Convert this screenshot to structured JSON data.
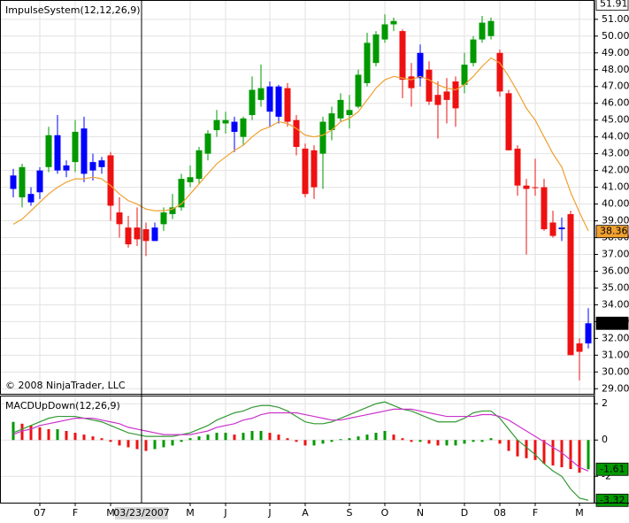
{
  "chart_data": [
    {
      "type": "candlestick",
      "title": "ImpulseSystem(12,12,26,9)",
      "annotation": "© 2008 NinjaTrader, LLC",
      "open": [
        40.9,
        40.4,
        40.6,
        40.7,
        42.2,
        42.0,
        42.0,
        42.5,
        44.5,
        42.5,
        42.6,
        42.9,
        39.5,
        38.6,
        38.6,
        38.5,
        37.8,
        38.8,
        39.4,
        39.8,
        41.3,
        41.5,
        43.0,
        44.4,
        44.8,
        44.9,
        44.0,
        45.3,
        46.2,
        47.0,
        45.2,
        46.9,
        45.0,
        43.3,
        43.2,
        43.0,
        44.4,
        45.1,
        45.3,
        45.8,
        47.2,
        48.4,
        49.8,
        50.7,
        50.3,
        47.6,
        47.5,
        48.0,
        46.5,
        46.7,
        47.3,
        47.1,
        48.4,
        49.8,
        50.0,
        49.0,
        46.6,
        43.3,
        41.1,
        41.0,
        41.0,
        38.9,
        38.6,
        39.4,
        31.7,
        31.7
      ],
      "high": [
        42.1,
        42.4,
        41.0,
        42.2,
        44.6,
        45.3,
        42.6,
        45.0,
        45.2,
        43.0,
        42.8,
        43.1,
        40.4,
        39.3,
        39.8,
        38.9,
        38.9,
        39.8,
        40.6,
        41.8,
        42.3,
        43.4,
        44.4,
        45.6,
        45.5,
        45.2,
        45.2,
        47.6,
        48.3,
        47.3,
        47.1,
        47.2,
        45.3,
        43.6,
        43.5,
        45.2,
        45.8,
        46.6,
        46.5,
        48.0,
        50.2,
        50.3,
        51.3,
        51.1,
        50.4,
        48.4,
        49.5,
        48.5,
        47.3,
        47.5,
        47.6,
        49.0,
        50.0,
        51.2,
        51.1,
        49.2,
        46.8,
        43.5,
        41.5,
        42.7,
        41.5,
        39.6,
        39.2,
        39.6,
        32.0,
        33.8
      ],
      "low": [
        40.4,
        39.8,
        39.9,
        40.3,
        41.9,
        41.8,
        41.6,
        41.9,
        41.3,
        41.4,
        41.8,
        39.0,
        38.0,
        37.4,
        37.5,
        36.9,
        37.8,
        38.4,
        39.1,
        39.6,
        41.0,
        41.2,
        42.6,
        44.0,
        44.2,
        43.1,
        43.5,
        45.0,
        45.8,
        44.6,
        44.8,
        44.6,
        42.9,
        40.4,
        40.3,
        40.9,
        43.8,
        44.9,
        44.5,
        45.7,
        47.0,
        48.2,
        49.6,
        50.3,
        46.3,
        45.8,
        47.0,
        45.9,
        43.9,
        44.8,
        44.6,
        46.6,
        48.2,
        49.6,
        49.8,
        46.4,
        43.2,
        40.5,
        37.0,
        40.5,
        38.4,
        38.0,
        37.8,
        31.0,
        29.5,
        31.4
      ],
      "close": [
        41.7,
        42.2,
        40.1,
        42.0,
        44.1,
        44.1,
        42.3,
        44.3,
        41.8,
        42.0,
        42.2,
        39.9,
        38.8,
        37.6,
        37.9,
        37.8,
        38.6,
        39.5,
        39.8,
        41.5,
        41.6,
        43.2,
        44.2,
        45.0,
        45.0,
        44.3,
        45.1,
        46.8,
        46.9,
        45.5,
        47.0,
        44.9,
        43.4,
        40.6,
        41.0,
        44.9,
        45.4,
        46.2,
        45.6,
        47.7,
        49.6,
        50.1,
        50.7,
        50.9,
        47.4,
        46.9,
        49.0,
        46.1,
        45.9,
        46.2,
        45.7,
        48.3,
        49.8,
        50.8,
        50.9,
        46.7,
        43.2,
        41.1,
        40.9,
        41.0,
        38.5,
        38.1,
        38.5,
        31.0,
        31.2,
        32.9
      ],
      "colors": [
        "#0000ff",
        "#009900",
        "#0000ff",
        "#0000ff",
        "#009900",
        "#0000ff",
        "#0000ff",
        "#009900",
        "#0000ff",
        "#0000ff",
        "#0000ff",
        "#ee1111",
        "#ee1111",
        "#ee1111",
        "#ee1111",
        "#ee1111",
        "#0000ff",
        "#009900",
        "#009900",
        "#009900",
        "#009900",
        "#009900",
        "#009900",
        "#009900",
        "#009900",
        "#0000ff",
        "#009900",
        "#009900",
        "#009900",
        "#0000ff",
        "#0000ff",
        "#ee1111",
        "#ee1111",
        "#ee1111",
        "#ee1111",
        "#009900",
        "#009900",
        "#009900",
        "#009900",
        "#009900",
        "#009900",
        "#009900",
        "#009900",
        "#009900",
        "#ee1111",
        "#ee1111",
        "#0000ff",
        "#ee1111",
        "#ee1111",
        "#ee1111",
        "#ee1111",
        "#009900",
        "#009900",
        "#009900",
        "#009900",
        "#ee1111",
        "#ee1111",
        "#ee1111",
        "#ee1111",
        "#ee1111",
        "#ee1111",
        "#ee1111",
        "#0000ff",
        "#ee1111",
        "#ee1111",
        "#0000ff"
      ],
      "ema": {
        "color": "#f0a030",
        "values": [
          38.8,
          39.1,
          39.6,
          40.1,
          40.6,
          41.0,
          41.3,
          41.5,
          41.5,
          41.6,
          41.5,
          41.1,
          40.6,
          40.2,
          40.0,
          39.7,
          39.6,
          39.6,
          39.7,
          40.0,
          40.6,
          41.2,
          41.8,
          42.4,
          42.8,
          43.2,
          43.5,
          44.0,
          44.4,
          44.6,
          44.9,
          44.8,
          44.5,
          44.1,
          44.0,
          44.1,
          44.4,
          44.9,
          45.1,
          45.5,
          46.2,
          46.9,
          47.4,
          47.6,
          47.5,
          47.4,
          47.6,
          47.4,
          47.1,
          46.9,
          46.8,
          47.1,
          47.6,
          48.2,
          48.7,
          48.4,
          47.6,
          46.7,
          45.7,
          45.0,
          44.0,
          43.0,
          42.2,
          40.7,
          39.5,
          38.4
        ]
      },
      "ylim": [
        28.7,
        52.15
      ],
      "yticks": [
        {
          "value": 29,
          "label": "29.00"
        },
        {
          "value": 30,
          "label": "30.00"
        },
        {
          "value": 31,
          "label": "31.00"
        },
        {
          "value": 32,
          "label": "32.00"
        },
        {
          "value": 33,
          "label": "33.00"
        },
        {
          "value": 34,
          "label": "34.00"
        },
        {
          "value": 35,
          "label": "35.00"
        },
        {
          "value": 36,
          "label": "36.00"
        },
        {
          "value": 37,
          "label": "37.00"
        },
        {
          "value": 38,
          "label": "38.00"
        },
        {
          "value": 39,
          "label": "39.00"
        },
        {
          "value": 40,
          "label": "40.00"
        },
        {
          "value": 41,
          "label": "41.00"
        },
        {
          "value": 42,
          "label": "42.00"
        },
        {
          "value": 43,
          "label": "43.00"
        },
        {
          "value": 44,
          "label": "44.00"
        },
        {
          "value": 45,
          "label": "45.00"
        },
        {
          "value": 46,
          "label": "46.00"
        },
        {
          "value": 47,
          "label": "47.00"
        },
        {
          "value": 48,
          "label": "48.00"
        },
        {
          "value": 49,
          "label": "49.00"
        },
        {
          "value": 50,
          "label": "50.00"
        },
        {
          "value": 51,
          "label": "51.00"
        }
      ],
      "markers": [
        {
          "value": 51.91,
          "label": "51.91",
          "color": "#ffffff"
        },
        {
          "value": 38.36,
          "label": "38.36",
          "color": "#f0a030"
        },
        {
          "value": 32.9,
          "label": "32.90",
          "color": "#000000"
        }
      ],
      "grid": true
    },
    {
      "type": "macd",
      "title": "MACDUpDown(12,26,9)",
      "histogram": [
        1.0,
        0.9,
        0.8,
        0.7,
        0.6,
        0.6,
        0.5,
        0.4,
        0.3,
        0.2,
        0.1,
        -0.1,
        -0.3,
        -0.4,
        -0.5,
        -0.6,
        -0.5,
        -0.4,
        -0.3,
        -0.1,
        0.1,
        0.2,
        0.3,
        0.4,
        0.4,
        0.3,
        0.4,
        0.5,
        0.5,
        0.4,
        0.3,
        0.1,
        -0.1,
        -0.3,
        -0.3,
        -0.2,
        -0.1,
        0.05,
        0.1,
        0.2,
        0.3,
        0.4,
        0.5,
        0.3,
        0.1,
        -0.1,
        -0.1,
        -0.2,
        -0.3,
        -0.3,
        -0.3,
        -0.2,
        -0.1,
        -0.1,
        0.1,
        -0.2,
        -0.6,
        -0.9,
        -1.0,
        -1.1,
        -1.3,
        -1.4,
        -1.5,
        -1.6,
        -1.8,
        -1.61
      ],
      "up_color": "#009900",
      "down_color": "#ee1111",
      "macd": {
        "color": "#339933",
        "values": [
          0.4,
          0.6,
          0.8,
          1.0,
          1.2,
          1.3,
          1.3,
          1.3,
          1.2,
          1.1,
          1.0,
          0.8,
          0.6,
          0.4,
          0.3,
          0.2,
          0.2,
          0.2,
          0.2,
          0.3,
          0.4,
          0.6,
          0.8,
          1.1,
          1.3,
          1.5,
          1.6,
          1.8,
          1.9,
          1.9,
          1.8,
          1.6,
          1.3,
          1.0,
          0.9,
          0.9,
          1.0,
          1.2,
          1.4,
          1.6,
          1.8,
          2.0,
          2.1,
          1.9,
          1.7,
          1.6,
          1.4,
          1.2,
          1.0,
          1.0,
          1.0,
          1.2,
          1.5,
          1.6,
          1.6,
          1.2,
          0.6,
          0.0,
          -0.4,
          -0.8,
          -1.3,
          -1.7,
          -2.0,
          -2.7,
          -3.2,
          -3.32
        ]
      },
      "signal": {
        "color": "#cc33cc",
        "values": [
          0.3,
          0.5,
          0.6,
          0.8,
          0.9,
          1.0,
          1.1,
          1.2,
          1.2,
          1.2,
          1.1,
          1.0,
          0.9,
          0.7,
          0.6,
          0.5,
          0.4,
          0.3,
          0.3,
          0.3,
          0.3,
          0.4,
          0.5,
          0.7,
          0.8,
          0.9,
          1.1,
          1.2,
          1.4,
          1.5,
          1.5,
          1.5,
          1.5,
          1.4,
          1.3,
          1.2,
          1.1,
          1.1,
          1.2,
          1.3,
          1.4,
          1.5,
          1.6,
          1.7,
          1.7,
          1.7,
          1.6,
          1.5,
          1.4,
          1.3,
          1.3,
          1.3,
          1.3,
          1.4,
          1.4,
          1.3,
          1.1,
          0.8,
          0.5,
          0.2,
          -0.1,
          -0.4,
          -0.7,
          -1.1,
          -1.5,
          -1.71
        ]
      },
      "ylim": [
        -3.45,
        2.45
      ],
      "yticks": [
        2,
        0,
        -2
      ],
      "markers": [
        {
          "value": -1.61,
          "label": "-1.61",
          "color": "#009900"
        },
        {
          "value": -3.32,
          "label": "-3.32",
          "color": "#009900"
        }
      ],
      "xticks": [
        {
          "value": 3,
          "label": "07"
        },
        {
          "value": 7,
          "label": "F"
        },
        {
          "value": 11,
          "label": "M"
        },
        {
          "value": 20,
          "label": "M"
        },
        {
          "value": 24,
          "label": "J"
        },
        {
          "value": 29,
          "label": "J"
        },
        {
          "value": 33,
          "label": "A"
        },
        {
          "value": 38,
          "label": "S"
        },
        {
          "value": 42,
          "label": "O"
        },
        {
          "value": 46,
          "label": "N"
        },
        {
          "value": 51,
          "label": "D"
        },
        {
          "value": 55,
          "label": "08"
        },
        {
          "value": 59,
          "label": "F"
        },
        {
          "value": 64,
          "label": "M"
        }
      ],
      "crosshair": {
        "x": 14.5,
        "label": "03/23/2007"
      },
      "grid": true
    }
  ]
}
